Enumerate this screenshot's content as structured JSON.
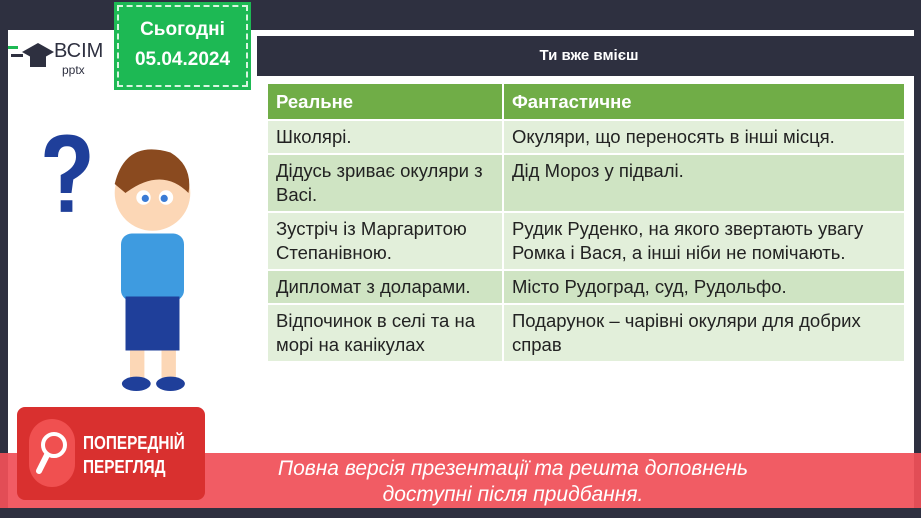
{
  "logo": {
    "name": "ВСІМ",
    "sub": "pptx"
  },
  "date_badge": {
    "label": "Сьогодні",
    "date": "05.04.2024"
  },
  "header": {
    "title": "Ти вже вмієш"
  },
  "table": {
    "columns": [
      "Реальне",
      "Фантастичне"
    ],
    "rows": [
      [
        "Школярі.",
        "Окуляри, що переносять в інші місця."
      ],
      [
        "Дідусь зриває окуляри з Васі.",
        "Дід Мороз у підвалі."
      ],
      [
        "Зустріч із Маргаритою Степанівною.",
        "Рудик Руденко, на якого звертають увагу Ромка і Вася, а інші ніби не помічають."
      ],
      [
        "Дипломат з доларами.",
        "Місто Рудоград, суд, Рудольфо."
      ],
      [
        "Відпочинок в селі та на морі на канікулах",
        "Подарунок – чарівні окуляри для добрих справ"
      ]
    ]
  },
  "preview": {
    "badge_line1": "ПОПЕРЕДНІЙ",
    "badge_line2": "ПЕРЕГЛЯД",
    "message_line1": "Повна версія презентації та решта доповнень",
    "message_line2": "доступні після придбання."
  },
  "colors": {
    "frame": "#2e3040",
    "green": "#1db954",
    "table_header": "#70ad47",
    "banner": "#f05058"
  }
}
